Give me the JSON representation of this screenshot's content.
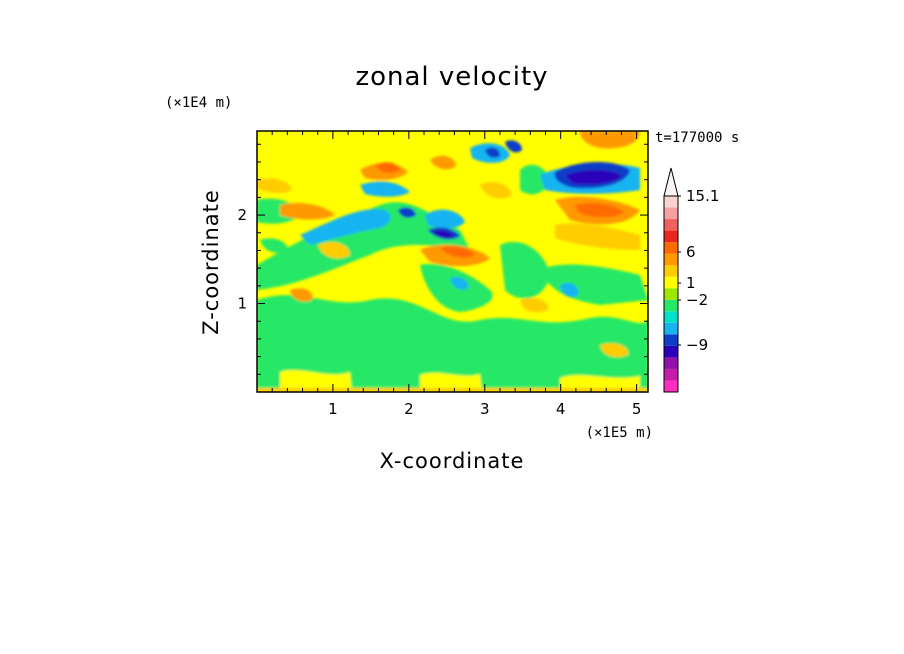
{
  "chart_data": {
    "type": "heatmap",
    "title": "zonal velocity",
    "xlabel": "X-coordinate",
    "ylabel": "Z-coordinate",
    "x_scale_note": "(×1E5 m)",
    "y_scale_note": "(×1E4 m)",
    "time_label": "t=177000 s",
    "xlim": [
      0,
      5.15
    ],
    "ylim": [
      0,
      2.95
    ],
    "x_ticks": [
      1,
      2,
      3,
      4,
      5
    ],
    "y_ticks": [
      1,
      2
    ],
    "colorbar": {
      "tick_values": [
        15.1,
        6,
        1,
        -2,
        -9
      ],
      "tick_labels": [
        "15.1",
        "6",
        "1",
        "−2",
        "−9"
      ],
      "band_colors": [
        "#ff2cc0",
        "#c51caa",
        "#9010a8",
        "#2a00b8",
        "#0c3ec8",
        "#18b4f0",
        "#00e0c8",
        "#26e866",
        "#9ee800",
        "#ffff00",
        "#ffcc00",
        "#ff9900",
        "#ff6a00",
        "#e8281e",
        "#f06060",
        "#f7a0a0",
        "#fbd2d2"
      ]
    },
    "features": [
      {
        "desc": "strong negative",
        "x": 4.3,
        "z": 2.5,
        "value": -9
      },
      {
        "desc": "negative",
        "x": 2.45,
        "z": 1.8,
        "value": -9
      },
      {
        "desc": "negative",
        "x": 1.95,
        "z": 2.05,
        "value": -9
      },
      {
        "desc": "negative",
        "x": 3.4,
        "z": 2.8,
        "value": -6
      },
      {
        "desc": "positive",
        "x": 1.7,
        "z": 2.5,
        "value": 6
      },
      {
        "desc": "positive",
        "x": 2.6,
        "z": 1.6,
        "value": 6
      },
      {
        "desc": "positive",
        "x": 4.5,
        "z": 2.05,
        "value": 6
      },
      {
        "desc": "positive",
        "x": 4.6,
        "z": 2.9,
        "value": 6
      }
    ]
  }
}
